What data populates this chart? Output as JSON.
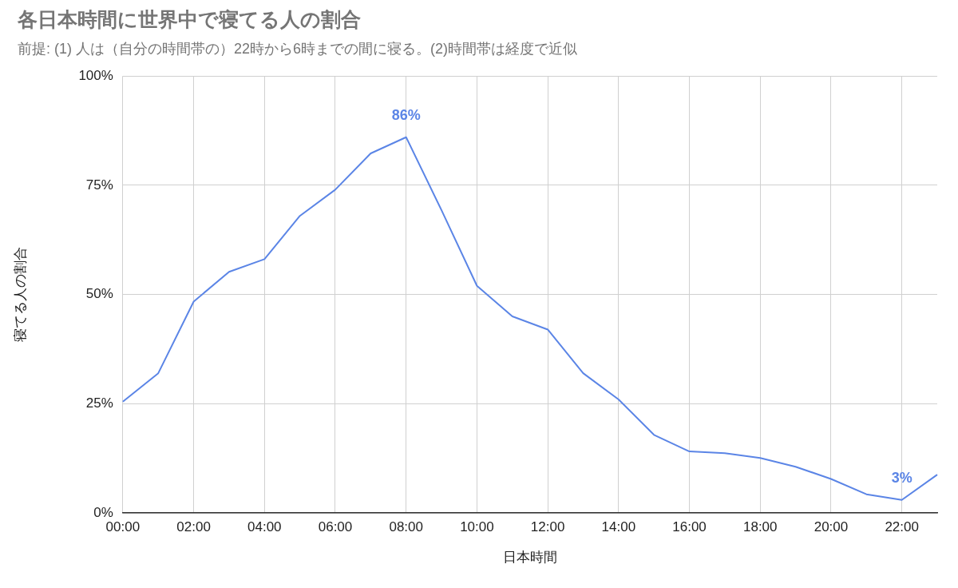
{
  "chart_data": {
    "type": "line",
    "title": "各日本時間に世界中で寝てる人の割合",
    "subtitle": "前提: (1) 人は（自分の時間帯の）22時から6時までの間に寝る。(2)時間帯は経度で近似",
    "xlabel": "日本時間",
    "ylabel": "寝てる人の割合",
    "categories": [
      "00:00",
      null,
      "02:00",
      null,
      "04:00",
      null,
      "06:00",
      null,
      "08:00",
      null,
      "10:00",
      null,
      "12:00",
      null,
      "14:00",
      null,
      "16:00",
      null,
      "18:00",
      null,
      "20:00",
      null,
      "22:00",
      null
    ],
    "series": [
      {
        "color": "#5b85e6",
        "values": [
          25.5,
          32,
          48.4,
          55.2,
          58.1,
          68,
          74,
          82.3,
          86,
          69.3,
          52,
          45,
          42,
          32,
          26,
          17.9,
          14.1,
          13.7,
          12.6,
          10.6,
          7.8,
          4.3,
          3,
          8.8
        ],
        "value_labels": [
          null,
          null,
          null,
          null,
          null,
          null,
          null,
          null,
          "86%",
          null,
          null,
          null,
          null,
          null,
          null,
          null,
          null,
          null,
          null,
          null,
          null,
          null,
          "3%",
          null
        ]
      }
    ],
    "ylim": [
      0,
      100
    ],
    "yticks": [
      {
        "value": 0,
        "label": "0%"
      },
      {
        "value": 25,
        "label": "25%"
      },
      {
        "value": 50,
        "label": "50%"
      },
      {
        "value": 75,
        "label": "75%"
      },
      {
        "value": 100,
        "label": "100%"
      }
    ],
    "grid": true,
    "legend": false,
    "marker": "none",
    "line_style": "solid"
  }
}
